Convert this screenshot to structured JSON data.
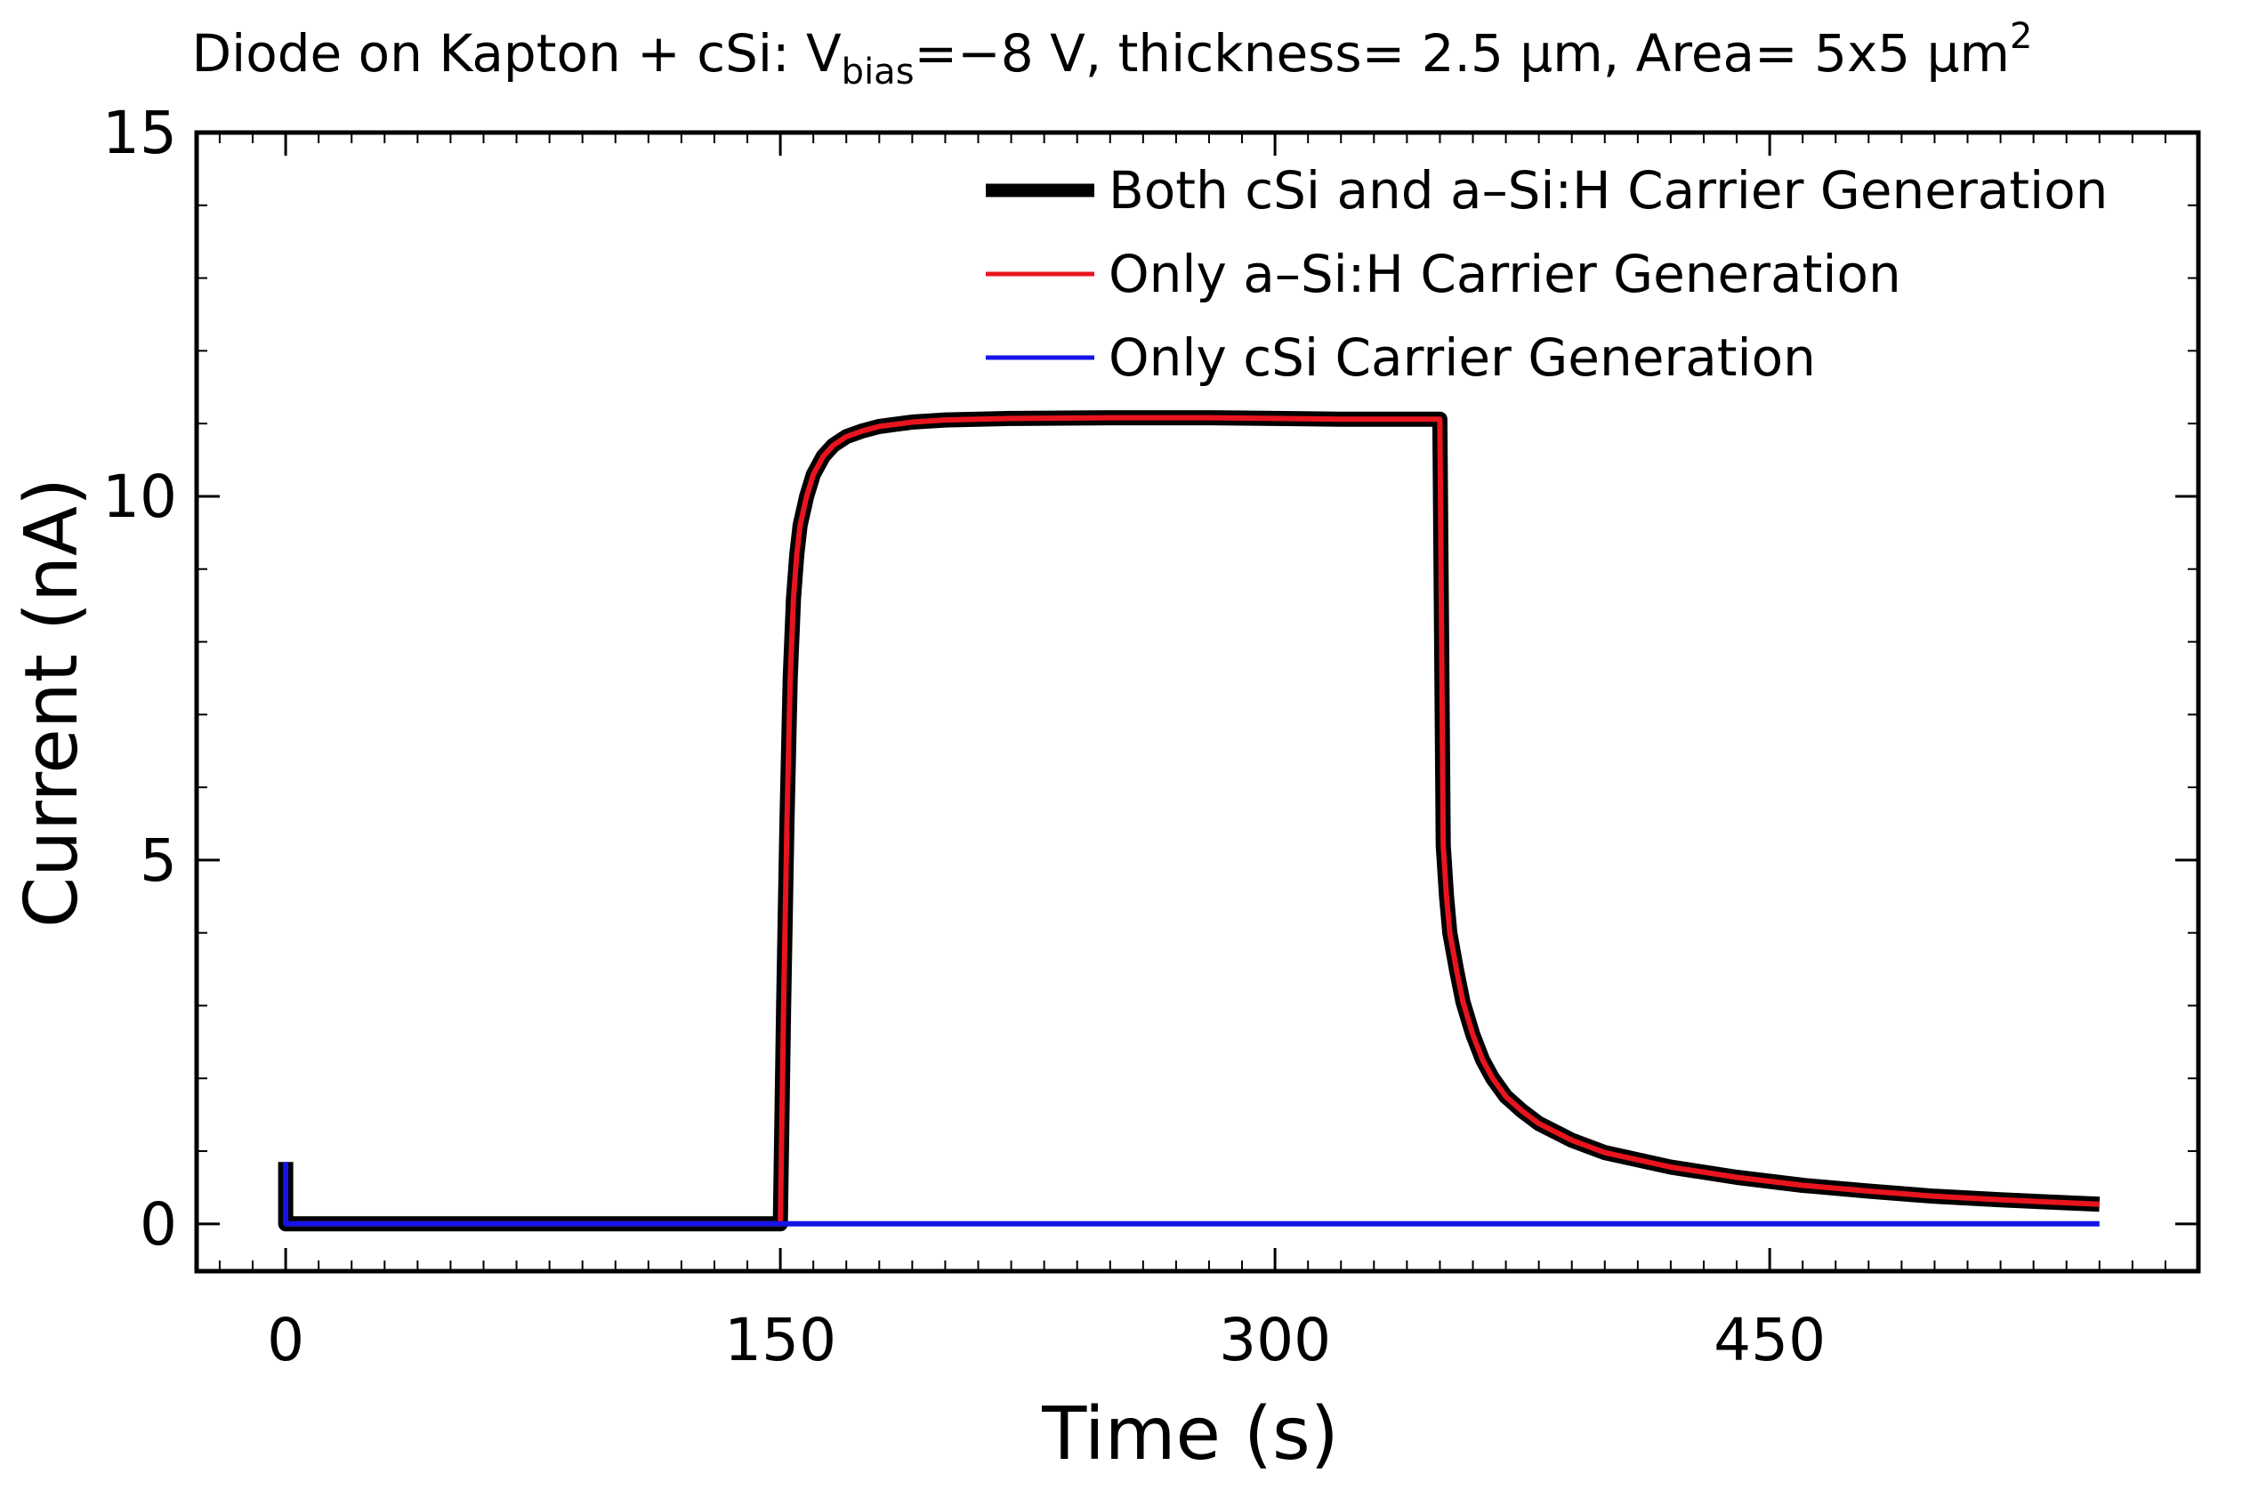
{
  "chart_data": {
    "type": "line",
    "title": {
      "main": "Diode on Kapton + cSi: V",
      "sub": "bias",
      "after_sub": "=−8 V, thickness= 2.5 μm, Area= 5x5 μm",
      "sup": "2"
    },
    "xlabel": "Time (s)",
    "ylabel": "Current (nA)",
    "xlim": [
      -27,
      580
    ],
    "ylim": [
      -0.65,
      15
    ],
    "xticks": [
      0,
      150,
      300,
      450
    ],
    "yticks": [
      0,
      5,
      10,
      15
    ],
    "x_minor_step": 10,
    "y_minor_step": 1,
    "legend_position": "top-right",
    "series": [
      {
        "name": "Both cSi and a–Si:H Carrier Generation",
        "color": "#000000",
        "style": "thick",
        "x": [
          0,
          0,
          0.8,
          149,
          150,
          151,
          152,
          153,
          154,
          155,
          156,
          158,
          160,
          163,
          166,
          170,
          175,
          180,
          190,
          200,
          220,
          250,
          280,
          300,
          320,
          349,
          350,
          351,
          352,
          353,
          355,
          357,
          360,
          363,
          366,
          370,
          375,
          380,
          390,
          400,
          420,
          440,
          460,
          480,
          500,
          520,
          550
        ],
        "values": [
          0.85,
          0,
          0,
          0,
          0,
          3.0,
          5.5,
          7.5,
          8.6,
          9.2,
          9.6,
          10.0,
          10.3,
          10.55,
          10.7,
          10.82,
          10.9,
          10.96,
          11.02,
          11.05,
          11.07,
          11.08,
          11.08,
          11.07,
          11.06,
          11.06,
          11.06,
          5.2,
          4.5,
          4.0,
          3.5,
          3.05,
          2.6,
          2.25,
          2.0,
          1.75,
          1.55,
          1.38,
          1.15,
          0.98,
          0.78,
          0.64,
          0.53,
          0.45,
          0.38,
          0.33,
          0.27
        ]
      },
      {
        "name": "Only a–Si:H Carrier Generation",
        "color": "#e8141e",
        "style": "thin",
        "x": [
          0,
          149,
          150,
          151,
          152,
          153,
          154,
          155,
          156,
          158,
          160,
          163,
          166,
          170,
          175,
          180,
          190,
          200,
          220,
          250,
          280,
          300,
          320,
          349,
          350,
          351,
          352,
          353,
          355,
          357,
          360,
          363,
          366,
          370,
          375,
          380,
          390,
          400,
          420,
          440,
          460,
          480,
          500,
          520,
          550
        ],
        "values": [
          0,
          0,
          0,
          3.0,
          5.5,
          7.5,
          8.6,
          9.2,
          9.6,
          10.0,
          10.3,
          10.55,
          10.7,
          10.82,
          10.9,
          10.96,
          11.02,
          11.05,
          11.07,
          11.08,
          11.08,
          11.07,
          11.06,
          11.06,
          11.06,
          5.2,
          4.5,
          4.0,
          3.5,
          3.05,
          2.6,
          2.25,
          2.0,
          1.75,
          1.55,
          1.38,
          1.15,
          0.98,
          0.78,
          0.64,
          0.53,
          0.45,
          0.38,
          0.33,
          0.27
        ]
      },
      {
        "name": "Only cSi Carrier Generation",
        "color": "#1414e6",
        "style": "thin",
        "x": [
          0,
          0,
          0.8,
          150,
          350,
          550
        ],
        "values": [
          0.85,
          0,
          0,
          0,
          0,
          0
        ]
      }
    ]
  }
}
